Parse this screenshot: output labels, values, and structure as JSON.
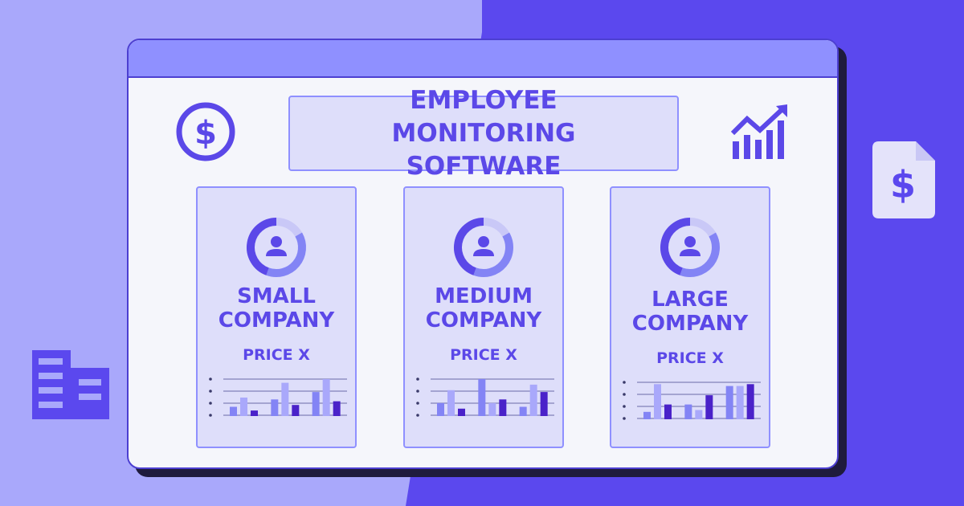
{
  "banner": {
    "title_line1": "EMPLOYEE MONITORING",
    "title_line2": "SOFTWARE"
  },
  "icons": {
    "top_left": "dollar-circle-icon",
    "top_right": "trending-chart-icon",
    "right_outside": "invoice-document-icon",
    "left_outside": "office-building-icon",
    "card_avatar": "user-donut-icon"
  },
  "colors": {
    "background_light": "#a9a8fb",
    "background_dark": "#5b48ee",
    "window": "#f5f6fb",
    "titlebar": "#8f90ff",
    "card": "#dedefa",
    "accent": "#5b48e8",
    "bar_light": "#a9a8fb",
    "bar_mid": "#8384f5",
    "bar_dark": "#4a22c9"
  },
  "cards": [
    {
      "name_line1": "SMALL",
      "name_line2": "COMPANY",
      "price": "PRICE X",
      "chart_bars": [
        [
          0.25,
          0.5,
          0.15
        ],
        [
          0.45,
          0.9,
          0.3
        ],
        [
          0.65,
          1.0,
          0.4
        ]
      ]
    },
    {
      "name_line1": "MEDIUM",
      "name_line2": "COMPANY",
      "price": "PRICE X",
      "chart_bars": [
        [
          0.35,
          0.7,
          0.2
        ],
        [
          1.0,
          0.35,
          0.45
        ],
        [
          0.25,
          0.85,
          0.65
        ]
      ]
    },
    {
      "name_line1": "LARGE",
      "name_line2": "COMPANY",
      "price": "PRICE X",
      "chart_bars": [
        [
          0.2,
          0.95,
          0.4
        ],
        [
          0.4,
          0.25,
          0.65
        ],
        [
          0.9,
          0.9,
          0.95
        ]
      ]
    }
  ]
}
